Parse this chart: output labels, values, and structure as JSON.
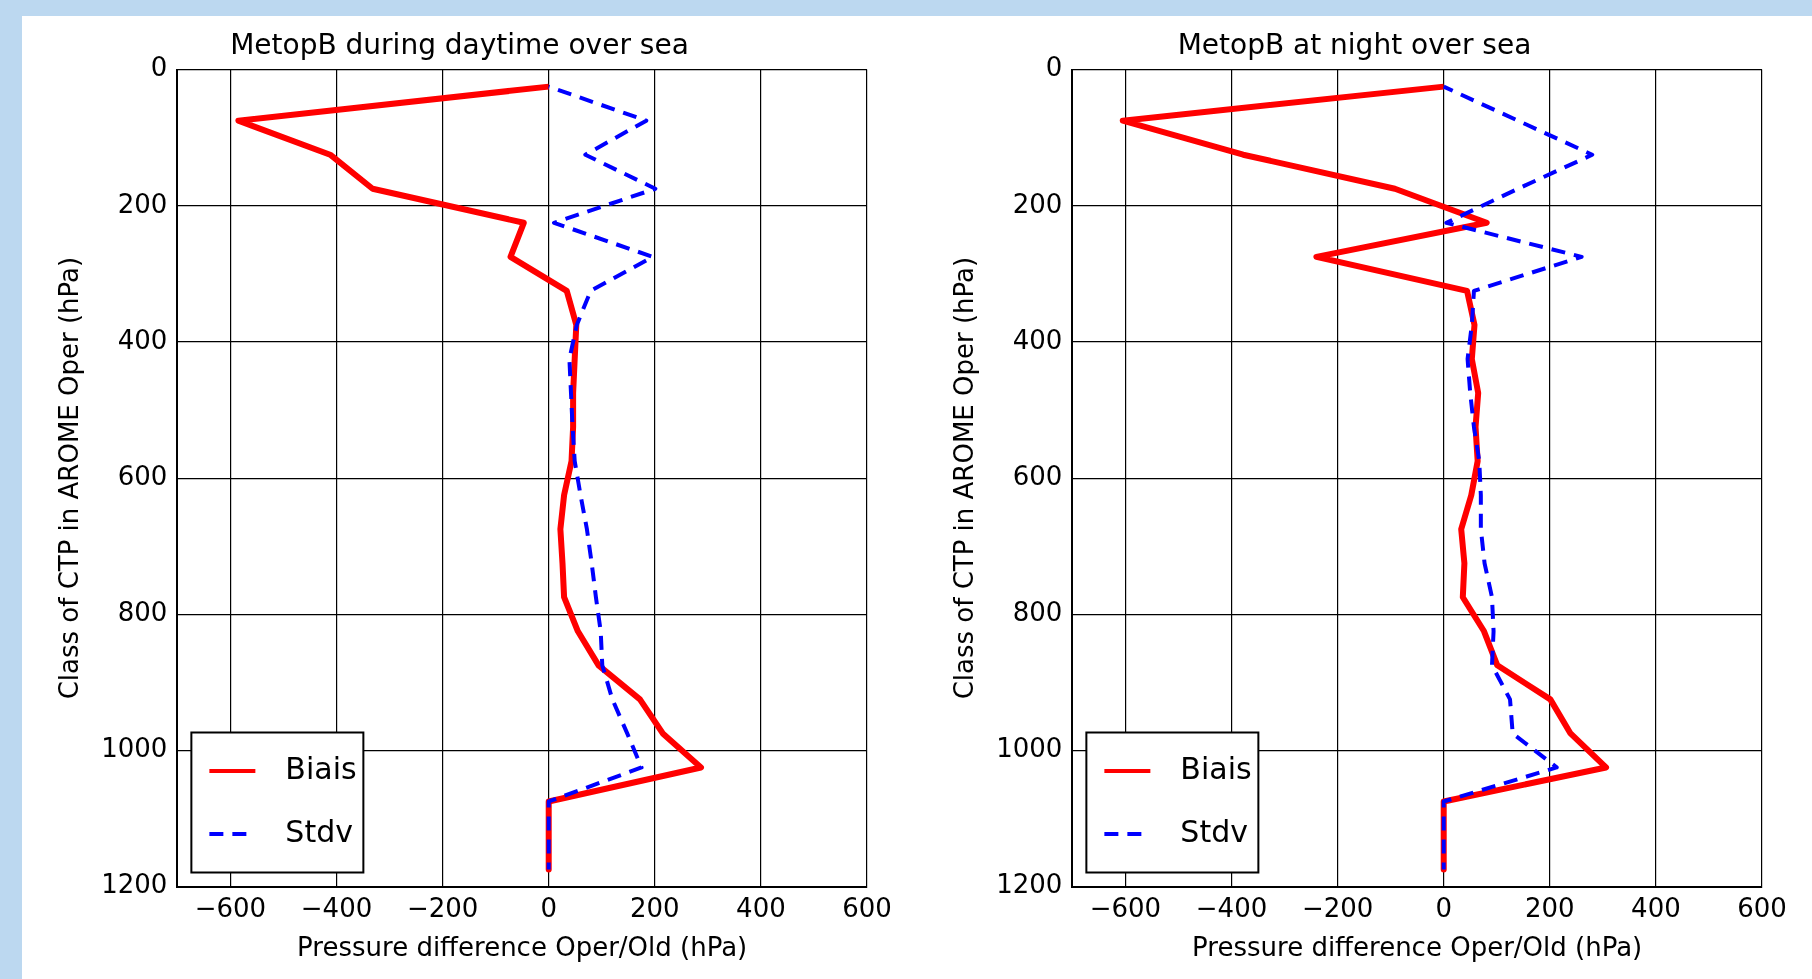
{
  "chart_data": [
    {
      "type": "line",
      "title": "MetopB during daytime over sea",
      "xlabel": "Pressure difference Oper/Old (hPa)",
      "ylabel": "Class of CTP in AROME Oper (hPa)",
      "xlim": [
        -700,
        600
      ],
      "xticks": [
        -600,
        -400,
        -200,
        0,
        200,
        400,
        600
      ],
      "ylim": [
        1200,
        0
      ],
      "yticks": [
        0,
        200,
        400,
        600,
        800,
        1000,
        1200
      ],
      "grid": true,
      "legend": "bottom left",
      "series": [
        {
          "name": "Biais",
          "color": "#ff0000",
          "line_style": "solid",
          "x": [
            0,
            -585,
            -412,
            -332,
            -47,
            -72,
            34,
            52,
            49,
            46,
            46,
            43,
            29,
            22,
            26,
            29,
            55,
            94,
            172,
            215,
            287,
            0,
            0
          ],
          "values": [
            25,
            75,
            125,
            175,
            225,
            275,
            325,
            375,
            425,
            475,
            525,
            575,
            625,
            675,
            725,
            775,
            825,
            875,
            925,
            975,
            1025,
            1075,
            1175
          ]
        },
        {
          "name": "Stdv",
          "color": "#0000ff",
          "line_style": "dashed",
          "x": [
            0,
            184,
            69,
            201,
            10,
            196,
            79,
            53,
            39,
            42,
            45,
            49,
            60,
            72,
            81,
            89,
            98,
            101,
            120,
            148,
            175,
            0,
            0,
            0
          ],
          "values": [
            25,
            75,
            125,
            175,
            225,
            275,
            325,
            375,
            425,
            475,
            525,
            575,
            625,
            675,
            725,
            775,
            825,
            875,
            925,
            975,
            1025,
            1075,
            1125,
            1175
          ]
        }
      ]
    },
    {
      "type": "line",
      "title": "MetopB at night over sea",
      "xlabel": "Pressure difference Oper/Old (hPa)",
      "ylabel": "Class of CTP in AROME Oper (hPa)",
      "xlim": [
        -700,
        600
      ],
      "xticks": [
        -600,
        -400,
        -200,
        0,
        200,
        400,
        600
      ],
      "ylim": [
        1200,
        0
      ],
      "yticks": [
        0,
        200,
        400,
        600,
        800,
        1000,
        1200
      ],
      "grid": true,
      "legend": "bottom left",
      "series": [
        {
          "name": "Biais",
          "color": "#ff0000",
          "line_style": "solid",
          "x": [
            0,
            -605,
            -378,
            -92,
            81,
            -240,
            44,
            58,
            53,
            65,
            60,
            64,
            52,
            33,
            39,
            36,
            76,
            101,
            201,
            239,
            306,
            0,
            0
          ],
          "values": [
            25,
            75,
            125,
            175,
            225,
            275,
            325,
            375,
            425,
            475,
            525,
            575,
            625,
            675,
            725,
            775,
            825,
            875,
            925,
            975,
            1025,
            1075,
            1175
          ]
        },
        {
          "name": "Stdv",
          "color": "#0000ff",
          "line_style": "dashed",
          "x": [
            0,
            140,
            280,
            140,
            5,
            260,
            57,
            53,
            45,
            50,
            57,
            67,
            70,
            70,
            77,
            91,
            94,
            91,
            125,
            130,
            213,
            0,
            0,
            0
          ],
          "values": [
            25,
            75,
            125,
            175,
            225,
            275,
            325,
            375,
            425,
            475,
            525,
            575,
            625,
            675,
            725,
            775,
            825,
            875,
            925,
            975,
            1025,
            1075,
            1125,
            1175
          ]
        }
      ]
    }
  ]
}
